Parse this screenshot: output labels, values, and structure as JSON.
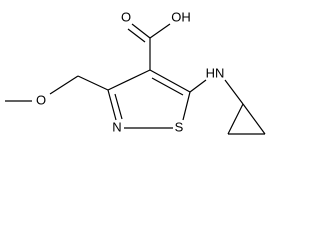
{
  "atoms": {
    "carbonyl_oxygen": "O",
    "hydroxyl": "OH",
    "ether_oxygen": "O",
    "ring_nitrogen": "N",
    "ring_sulfur": "S",
    "amine": "HN"
  }
}
